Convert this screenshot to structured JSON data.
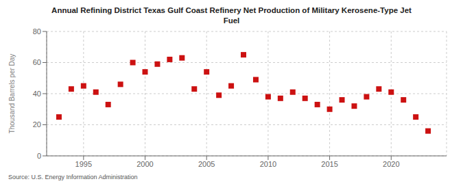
{
  "chart_data": {
    "type": "scatter",
    "title": "Annual Refining District Texas Gulf Coast Refinery Net Production of Military Kerosene-Type Jet\nFuel",
    "y_label": "Thousand Barrels per Day",
    "annotations": [
      "Source: U.S. Energy Information Administration"
    ],
    "x": [
      1993,
      1994,
      1995,
      1996,
      1997,
      1998,
      1999,
      2000,
      2001,
      2002,
      2003,
      2004,
      2005,
      2006,
      2007,
      2008,
      2009,
      2010,
      2011,
      2012,
      2013,
      2014,
      2015,
      2016,
      2017,
      2018,
      2019,
      2020,
      2021,
      2022,
      2023
    ],
    "values": [
      25,
      43,
      45,
      41,
      33,
      46,
      60,
      54,
      59,
      62,
      63,
      43,
      54,
      39,
      45,
      65,
      49,
      38,
      37,
      41,
      37,
      33,
      30,
      36,
      32,
      38,
      43,
      41,
      36,
      25,
      16
    ],
    "color": "#cc1111",
    "marker": "square",
    "xlim": [
      1992.0,
      2024.5
    ],
    "xticks": [
      1995,
      2000,
      2005,
      2010,
      2015,
      2020
    ],
    "ylim": [
      0,
      80
    ],
    "yticks": [
      0,
      20,
      40,
      60,
      80
    ],
    "grid": true
  }
}
